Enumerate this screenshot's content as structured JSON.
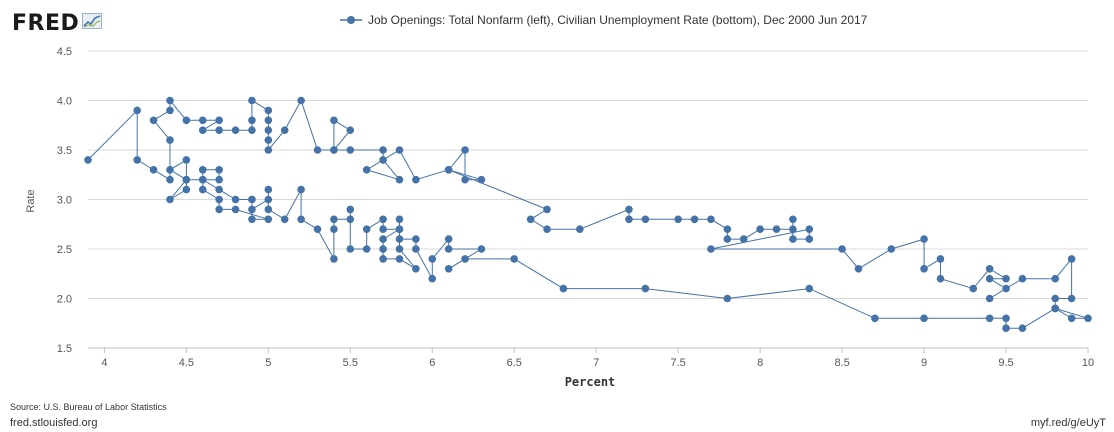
{
  "header": {
    "logo_text": "FRED",
    "logo_icon": "line-graph-icon"
  },
  "chart_data": {
    "type": "scatter",
    "connected": true,
    "title": "Job Openings: Total Nonfarm (left), Civilian Unemployment Rate (bottom), Dec 2000 Jun 2017",
    "xlabel": "Percent",
    "ylabel": "Rate",
    "xlim": [
      3.9,
      10.0
    ],
    "ylim": [
      1.5,
      4.5
    ],
    "x_ticks": [
      4,
      4.5,
      5,
      5.5,
      6,
      6.5,
      7,
      7.5,
      8,
      8.5,
      9,
      9.5,
      10
    ],
    "x_tick_labels": [
      "4",
      "4.5",
      "5",
      "5.5",
      "6",
      "6.5",
      "7",
      "7.5",
      "8",
      "8.5",
      "9",
      "9.5",
      "10"
    ],
    "y_ticks": [
      1.5,
      2.0,
      2.5,
      3.0,
      3.5,
      4.0,
      4.5
    ],
    "y_tick_labels": [
      "1.5",
      "2.0",
      "2.5",
      "3.0",
      "3.5",
      "4.0",
      "4.5"
    ],
    "grid": "horizontal",
    "color": "#4572a7",
    "points": [
      [
        3.9,
        3.4
      ],
      [
        4.2,
        3.9
      ],
      [
        4.2,
        3.4
      ],
      [
        4.3,
        3.3
      ],
      [
        4.4,
        3.2
      ],
      [
        4.4,
        3.6
      ],
      [
        4.3,
        3.8
      ],
      [
        4.4,
        3.9
      ],
      [
        4.4,
        4.0
      ],
      [
        4.5,
        3.8
      ],
      [
        4.6,
        3.8
      ],
      [
        4.7,
        3.8
      ],
      [
        4.6,
        3.7
      ],
      [
        4.7,
        3.7
      ],
      [
        4.8,
        3.7
      ],
      [
        4.9,
        3.7
      ],
      [
        4.9,
        3.8
      ],
      [
        4.9,
        4.0
      ],
      [
        5.0,
        3.9
      ],
      [
        5.0,
        3.8
      ],
      [
        5.0,
        3.7
      ],
      [
        5.0,
        3.6
      ],
      [
        5.0,
        3.5
      ],
      [
        5.1,
        3.7
      ],
      [
        5.2,
        4.0
      ],
      [
        5.3,
        3.5
      ],
      [
        5.4,
        3.5
      ],
      [
        5.4,
        3.8
      ],
      [
        5.5,
        3.7
      ],
      [
        5.4,
        3.5
      ],
      [
        5.5,
        3.5
      ],
      [
        5.7,
        3.5
      ],
      [
        5.7,
        3.4
      ],
      [
        5.8,
        3.2
      ],
      [
        5.6,
        3.3
      ],
      [
        5.8,
        3.5
      ],
      [
        5.9,
        3.2
      ],
      [
        6.1,
        3.3
      ],
      [
        6.2,
        3.5
      ],
      [
        6.2,
        3.2
      ],
      [
        6.3,
        3.2
      ],
      [
        6.1,
        3.3
      ],
      [
        6.7,
        2.9
      ],
      [
        6.6,
        2.8
      ],
      [
        6.7,
        2.7
      ],
      [
        6.9,
        2.7
      ],
      [
        7.2,
        2.9
      ],
      [
        7.2,
        2.8
      ],
      [
        7.3,
        2.8
      ],
      [
        7.5,
        2.8
      ],
      [
        7.6,
        2.8
      ],
      [
        7.7,
        2.8
      ],
      [
        7.8,
        2.7
      ],
      [
        7.8,
        2.6
      ],
      [
        7.9,
        2.6
      ],
      [
        8.0,
        2.7
      ],
      [
        8.1,
        2.7
      ],
      [
        8.2,
        2.7
      ],
      [
        8.2,
        2.8
      ],
      [
        8.2,
        2.6
      ],
      [
        8.3,
        2.6
      ],
      [
        8.3,
        2.7
      ],
      [
        7.7,
        2.5
      ],
      [
        8.5,
        2.5
      ],
      [
        8.6,
        2.3
      ],
      [
        8.8,
        2.5
      ],
      [
        9.0,
        2.6
      ],
      [
        9.0,
        2.3
      ],
      [
        9.1,
        2.4
      ],
      [
        9.1,
        2.2
      ],
      [
        9.3,
        2.1
      ],
      [
        9.4,
        2.3
      ],
      [
        9.5,
        2.2
      ],
      [
        9.4,
        2.2
      ],
      [
        9.5,
        2.1
      ],
      [
        9.4,
        2.0
      ],
      [
        9.6,
        2.2
      ],
      [
        9.8,
        2.2
      ],
      [
        9.9,
        2.4
      ],
      [
        9.9,
        2.0
      ],
      [
        9.8,
        2.0
      ],
      [
        9.8,
        1.9
      ],
      [
        9.9,
        1.8
      ],
      [
        10.0,
        1.8
      ],
      [
        9.8,
        1.9
      ],
      [
        9.6,
        1.7
      ],
      [
        9.5,
        1.7
      ],
      [
        9.5,
        1.8
      ],
      [
        9.4,
        1.8
      ],
      [
        9.0,
        1.8
      ],
      [
        8.7,
        1.8
      ],
      [
        8.3,
        2.1
      ],
      [
        7.8,
        2.0
      ],
      [
        7.3,
        2.1
      ],
      [
        6.8,
        2.1
      ],
      [
        6.5,
        2.4
      ],
      [
        6.2,
        2.4
      ],
      [
        6.1,
        2.3
      ],
      [
        6.3,
        2.5
      ],
      [
        6.1,
        2.5
      ],
      [
        6.1,
        2.6
      ],
      [
        6.0,
        2.4
      ],
      [
        6.0,
        2.2
      ],
      [
        5.9,
        2.5
      ],
      [
        5.9,
        2.6
      ],
      [
        5.8,
        2.6
      ],
      [
        5.8,
        2.7
      ],
      [
        5.8,
        2.8
      ],
      [
        5.8,
        2.5
      ],
      [
        5.9,
        2.3
      ],
      [
        5.8,
        2.4
      ],
      [
        5.7,
        2.4
      ],
      [
        5.7,
        2.5
      ],
      [
        5.7,
        2.6
      ],
      [
        5.8,
        2.7
      ],
      [
        5.7,
        2.7
      ],
      [
        5.7,
        2.8
      ],
      [
        5.6,
        2.7
      ],
      [
        5.6,
        2.5
      ],
      [
        5.5,
        2.5
      ],
      [
        5.5,
        2.9
      ],
      [
        5.5,
        2.8
      ],
      [
        5.4,
        2.8
      ],
      [
        5.4,
        2.7
      ],
      [
        5.4,
        2.4
      ],
      [
        5.3,
        2.7
      ],
      [
        5.2,
        2.8
      ],
      [
        5.2,
        3.1
      ],
      [
        5.1,
        2.8
      ],
      [
        5.0,
        2.9
      ],
      [
        5.0,
        3.1
      ],
      [
        5.0,
        3.0
      ],
      [
        4.9,
        2.9
      ],
      [
        4.9,
        3.0
      ],
      [
        4.9,
        2.8
      ],
      [
        5.0,
        2.8
      ],
      [
        4.8,
        2.9
      ],
      [
        4.7,
        2.9
      ],
      [
        4.7,
        3.0
      ],
      [
        4.6,
        3.1
      ],
      [
        4.6,
        3.2
      ],
      [
        4.6,
        3.3
      ],
      [
        4.7,
        3.3
      ],
      [
        4.7,
        3.2
      ],
      [
        4.5,
        3.2
      ],
      [
        4.4,
        3.3
      ],
      [
        4.5,
        3.4
      ],
      [
        4.5,
        3.1
      ],
      [
        4.4,
        3.0
      ],
      [
        4.5,
        3.2
      ],
      [
        4.6,
        3.2
      ],
      [
        4.7,
        3.1
      ],
      [
        4.8,
        3.0
      ],
      [
        4.9,
        3.0
      ]
    ]
  },
  "footer": {
    "source": "Source: U.S. Bureau of Labor Statistics",
    "site": "fred.stlouisfed.org",
    "short_url": "myf.red/g/eUyT"
  }
}
